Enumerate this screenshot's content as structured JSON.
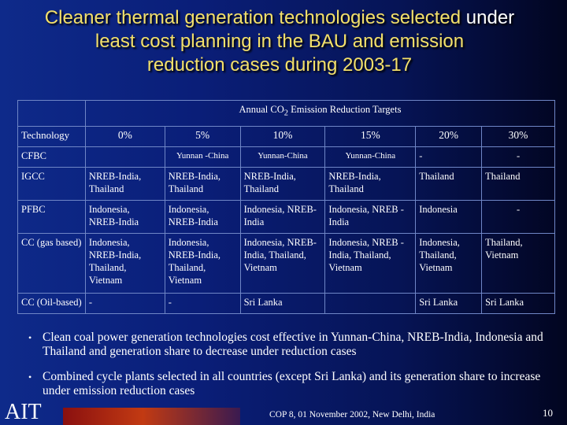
{
  "title": {
    "line1_a": "Cleaner thermal generation technologies selected",
    "line1_b": " under",
    "line2": "least cost planning in the BAU and emission",
    "line3": "reduction cases during 2003-17"
  },
  "table": {
    "group_header_prefix": "Annual CO",
    "group_header_sub": "2",
    "group_header_suffix": " Emission Reduction Targets",
    "tech_header": "Technology",
    "columns": [
      "0%",
      "5%",
      "10%",
      "15%",
      "20%",
      "30%"
    ],
    "rows": [
      {
        "tech": "CFBC",
        "cells": [
          "",
          "Yunnan -China",
          "Yunnan-China",
          "Yunnan-China",
          "-",
          "-"
        ]
      },
      {
        "tech": "IGCC",
        "cells": [
          "NREB-India, Thailand",
          "NREB-India, Thailand",
          "NREB-India, Thailand",
          "NREB-India, Thailand",
          "Thailand",
          "Thailand"
        ]
      },
      {
        "tech": "PFBC",
        "cells": [
          "Indonesia, NREB-India",
          "Indonesia, NREB-India",
          "Indonesia, NREB-India",
          "Indonesia, NREB -India",
          "Indonesia",
          "-"
        ]
      },
      {
        "tech": "CC (gas based)",
        "cells": [
          "Indonesia, NREB-India, Thailand, Vietnam",
          "Indonesia, NREB-India, Thailand, Vietnam",
          "Indonesia, NREB-India, Thailand, Vietnam",
          "Indonesia, NREB -India, Thailand, Vietnam",
          "Indonesia, Thailand, Vietnam",
          "Thailand, Vietnam"
        ]
      },
      {
        "tech": "CC (Oil-based)",
        "cells": [
          "-",
          "-",
          "Sri Lanka",
          "",
          "Sri Lanka",
          "Sri Lanka"
        ]
      }
    ]
  },
  "bullets": [
    "Clean coal power generation technologies cost effective in Yunnan-China, NREB-India, Indonesia and Thailand and generation share to decrease under reduction cases",
    "Combined cycle plants selected in all countries (except Sri Lanka) and its generation share to increase under emission reduction cases"
  ],
  "bullet_symbol": "•",
  "footer": {
    "logo": "AIT",
    "event": "COP 8, 01 November 2002, New Delhi, India",
    "page": "10"
  },
  "colors": {
    "title_highlight": "#f3e06a",
    "background": "#0a1e78",
    "bar_accent": "#c23a12"
  }
}
